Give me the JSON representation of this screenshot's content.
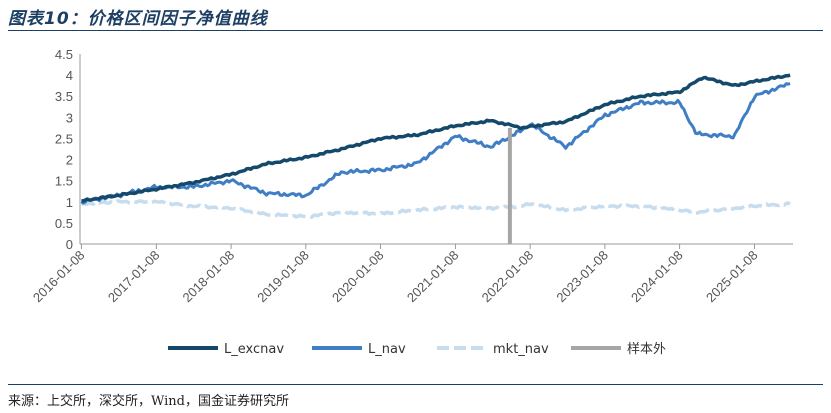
{
  "header": {
    "title": "图表10：价格区间因子净值曲线"
  },
  "footer": {
    "source": "来源：上交所，深交所，Wind，国金证券研究所"
  },
  "chart_data": {
    "type": "line",
    "title": "图表10：价格区间因子净值曲线",
    "xlabel": "",
    "ylabel": "",
    "x_ticks": [
      "2016-01-08",
      "2017-01-08",
      "2018-01-08",
      "2019-01-08",
      "2020-01-08",
      "2021-01-08",
      "2022-01-08",
      "2023-01-08",
      "2024-01-08",
      "2025-01-08"
    ],
    "y_ticks": [
      "0",
      "0.5",
      "1",
      "1.5",
      "2",
      "2.5",
      "3",
      "3.5",
      "4",
      "4.5"
    ],
    "ylim": [
      0,
      4.5
    ],
    "xlim": [
      "2016-01-01",
      "2025-07-15"
    ],
    "grid": false,
    "legend_position": "bottom",
    "colors": {
      "L_excnav": "#14496b",
      "L_nav": "#3f7ec4",
      "mkt_nav": "#c6dcef",
      "样本外": "#a6a6a6"
    },
    "series": [
      {
        "name": "L_excnav",
        "style": "solid-thick",
        "points": [
          [
            "2016-01-08",
            1.02
          ],
          [
            "2016-07-01",
            1.15
          ],
          [
            "2017-01-08",
            1.3
          ],
          [
            "2017-07-01",
            1.45
          ],
          [
            "2018-01-08",
            1.65
          ],
          [
            "2018-07-01",
            1.9
          ],
          [
            "2019-01-08",
            2.05
          ],
          [
            "2019-07-01",
            2.25
          ],
          [
            "2020-01-08",
            2.5
          ],
          [
            "2020-07-01",
            2.58
          ],
          [
            "2021-01-08",
            2.8
          ],
          [
            "2021-07-01",
            2.92
          ],
          [
            "2021-12-01",
            2.75
          ],
          [
            "2022-01-08",
            2.78
          ],
          [
            "2022-07-01",
            2.9
          ],
          [
            "2023-01-08",
            3.3
          ],
          [
            "2023-07-01",
            3.5
          ],
          [
            "2024-01-08",
            3.6
          ],
          [
            "2024-05-01",
            3.95
          ],
          [
            "2024-10-01",
            3.75
          ],
          [
            "2025-01-08",
            3.85
          ],
          [
            "2025-07-01",
            4.0
          ]
        ]
      },
      {
        "name": "L_nav",
        "style": "solid",
        "points": [
          [
            "2016-01-08",
            1.0
          ],
          [
            "2016-07-01",
            1.15
          ],
          [
            "2017-01-08",
            1.35
          ],
          [
            "2017-07-01",
            1.35
          ],
          [
            "2018-01-08",
            1.5
          ],
          [
            "2018-07-01",
            1.2
          ],
          [
            "2019-01-08",
            1.15
          ],
          [
            "2019-07-01",
            1.7
          ],
          [
            "2020-01-08",
            1.75
          ],
          [
            "2020-07-01",
            1.9
          ],
          [
            "2021-01-08",
            2.55
          ],
          [
            "2021-07-01",
            2.3
          ],
          [
            "2021-12-01",
            2.7
          ],
          [
            "2022-01-08",
            2.85
          ],
          [
            "2022-07-01",
            2.3
          ],
          [
            "2023-01-08",
            3.05
          ],
          [
            "2023-07-01",
            3.35
          ],
          [
            "2024-01-08",
            3.35
          ],
          [
            "2024-04-01",
            2.6
          ],
          [
            "2024-10-01",
            2.55
          ],
          [
            "2025-01-08",
            3.5
          ],
          [
            "2025-07-01",
            3.8
          ]
        ]
      },
      {
        "name": "mkt_nav",
        "style": "dashed",
        "points": [
          [
            "2016-01-08",
            0.95
          ],
          [
            "2016-07-01",
            1.0
          ],
          [
            "2017-01-08",
            1.0
          ],
          [
            "2017-07-01",
            0.9
          ],
          [
            "2018-01-08",
            0.85
          ],
          [
            "2018-07-01",
            0.7
          ],
          [
            "2019-01-08",
            0.65
          ],
          [
            "2019-07-01",
            0.75
          ],
          [
            "2020-01-08",
            0.72
          ],
          [
            "2020-07-01",
            0.8
          ],
          [
            "2021-01-08",
            0.88
          ],
          [
            "2021-07-01",
            0.85
          ],
          [
            "2021-12-01",
            0.9
          ],
          [
            "2022-01-08",
            0.95
          ],
          [
            "2022-07-01",
            0.8
          ],
          [
            "2023-01-08",
            0.9
          ],
          [
            "2023-07-01",
            0.9
          ],
          [
            "2024-01-08",
            0.8
          ],
          [
            "2024-04-01",
            0.75
          ],
          [
            "2025-01-08",
            0.9
          ],
          [
            "2025-07-01",
            0.95
          ]
        ]
      },
      {
        "name": "样本外",
        "style": "vertical-marker",
        "points": [
          [
            "2021-10-01",
            0
          ],
          [
            "2021-10-01",
            2.75
          ]
        ]
      }
    ]
  }
}
